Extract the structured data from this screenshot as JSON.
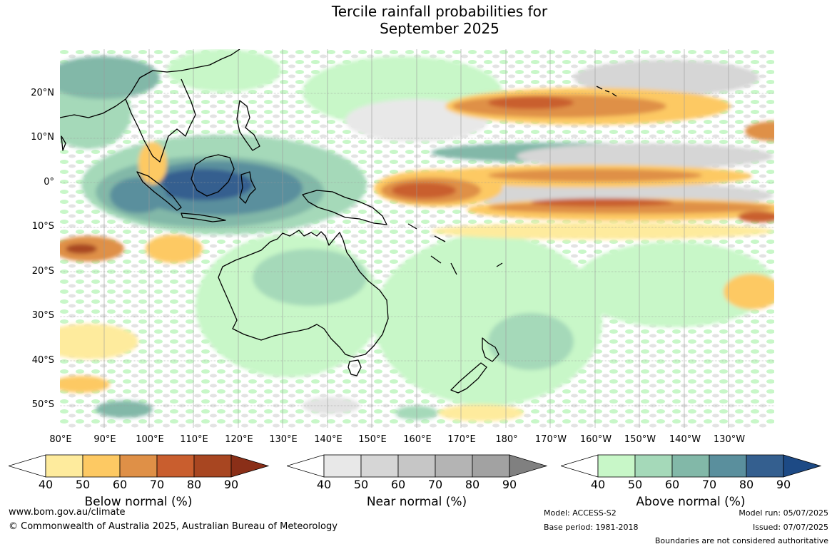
{
  "title": {
    "line1": "Tercile rainfall probabilities for",
    "line2": "September 2025"
  },
  "axes": {
    "lat_labels": [
      "20°N",
      "10°N",
      "0°",
      "10°S",
      "20°S",
      "30°S",
      "40°S",
      "50°S"
    ],
    "lon_labels": [
      "80°E",
      "90°E",
      "100°E",
      "110°E",
      "120°E",
      "130°E",
      "140°E",
      "150°E",
      "160°E",
      "170°E",
      "180°",
      "170°W",
      "160°W",
      "150°W",
      "140°W",
      "130°W"
    ]
  },
  "colorbars": [
    {
      "label": "Below normal (%)",
      "ticks": [
        "40",
        "50",
        "60",
        "70",
        "80",
        "90"
      ],
      "colors": [
        "#ffffff",
        "#feeb9d",
        "#fdc963",
        "#df9047",
        "#c95e2e",
        "#a84621",
        "#8a2f18"
      ]
    },
    {
      "label": "Near normal (%)",
      "ticks": [
        "40",
        "50",
        "60",
        "70",
        "80",
        "90"
      ],
      "colors": [
        "#ffffff",
        "#e8e8e8",
        "#d6d6d6",
        "#c6c6c6",
        "#b4b4b4",
        "#a2a2a2",
        "#808080"
      ]
    },
    {
      "label": "Above normal (%)",
      "ticks": [
        "40",
        "50",
        "60",
        "70",
        "80",
        "90"
      ],
      "colors": [
        "#ffffff",
        "#c8f7c8",
        "#a5d9b9",
        "#82b8a8",
        "#5a8f9d",
        "#345f8f",
        "#1d4a85"
      ]
    }
  ],
  "footer": {
    "website": "www.bom.gov.au/climate",
    "copyright": "© Commonwealth of Australia 2025, Australian Bureau of Meteorology",
    "model": "Model: ACCESS-S2",
    "base_period": "Base period: 1981-2018",
    "model_run": "Model run: 05/07/2025",
    "issued": "Issued: 07/07/2025",
    "disclaimer": "Boundaries are not considered authoritative"
  }
}
